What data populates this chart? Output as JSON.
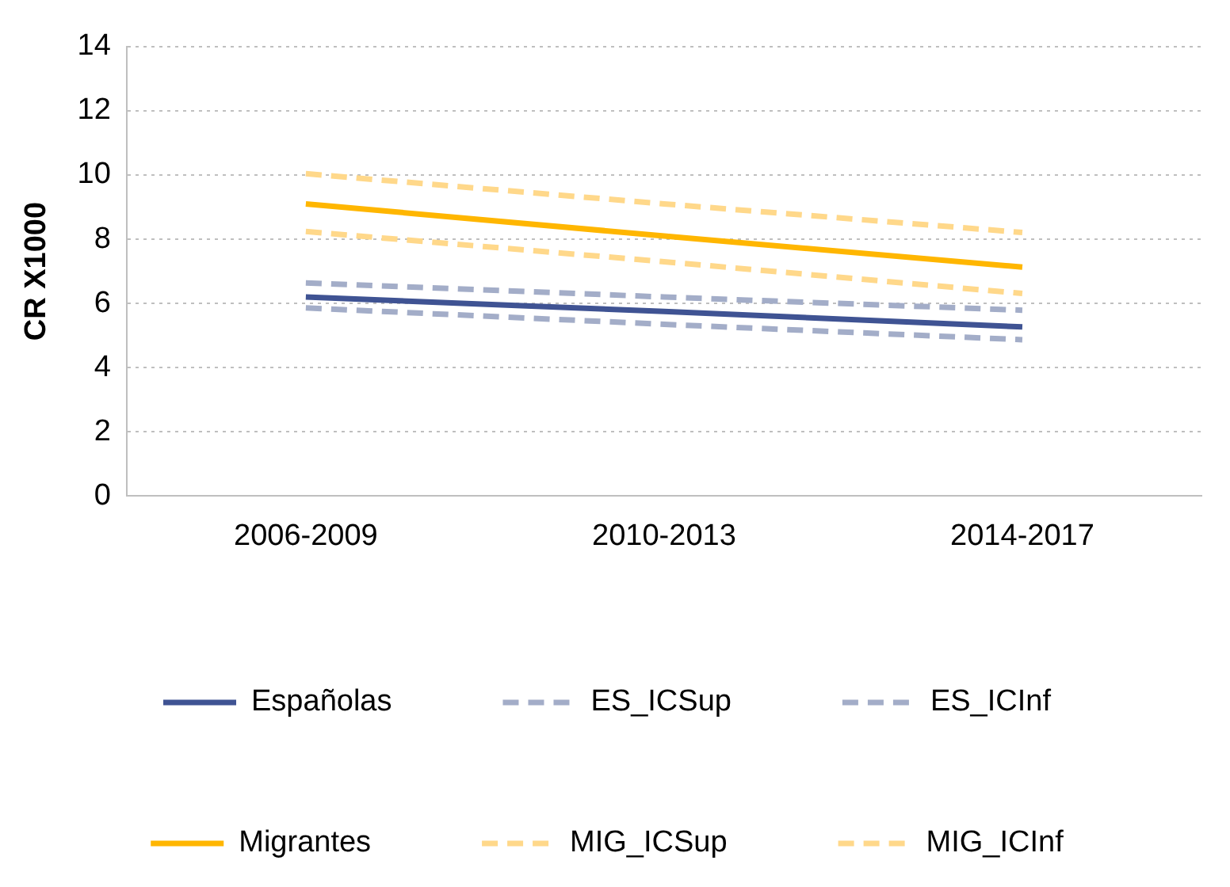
{
  "chart_data": {
    "type": "line",
    "ylabel": "CR X1000",
    "categories": [
      "2006-2009",
      "2010-2013",
      "2014-2017"
    ],
    "ylim": [
      0,
      14
    ],
    "yticks": [
      0,
      2,
      4,
      6,
      8,
      10,
      12,
      14
    ],
    "grid": "y",
    "legend": "bottom",
    "marker": "none",
    "series": [
      {
        "name": "Españolas",
        "color": "#3f5393",
        "line_style": "solid",
        "values": [
          6.2,
          5.75,
          5.27
        ]
      },
      {
        "name": "ES_ICSup",
        "color": "#a3adc8",
        "line_style": "dashed",
        "values": [
          6.64,
          6.2,
          5.79
        ]
      },
      {
        "name": "ES_ICInf",
        "color": "#a3adc8",
        "line_style": "dashed",
        "values": [
          5.86,
          5.35,
          4.87
        ]
      },
      {
        "name": "Migrantes",
        "color": "#ffb600",
        "line_style": "solid",
        "values": [
          9.1,
          8.1,
          7.13
        ]
      },
      {
        "name": "MIG_ICSup",
        "color": "#ffd88a",
        "line_style": "dashed",
        "values": [
          10.04,
          9.1,
          8.21
        ]
      },
      {
        "name": "MIG_ICInf",
        "color": "#ffd88a",
        "line_style": "dashed",
        "values": [
          8.24,
          7.3,
          6.31
        ]
      }
    ]
  }
}
